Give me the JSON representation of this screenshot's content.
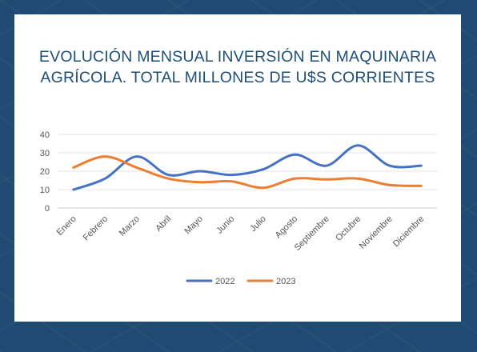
{
  "chart_data": {
    "type": "line",
    "title_line1": "EVOLUCIÓN MENSUAL INVERSIÓN EN MAQUINARIA",
    "title_line2": "AGRÍCOLA. TOTAL MILLONES DE U$S CORRIENTES",
    "categories": [
      "Enero",
      "Febrero",
      "Marzo",
      "Abril",
      "Mayo",
      "Junio",
      "Julio",
      "Agosto",
      "Septiembre",
      "Octubre",
      "Noviembre",
      "Diciembre"
    ],
    "series": [
      {
        "name": "2022",
        "color": "#4472c4",
        "values": [
          10,
          16,
          28,
          18,
          20,
          18,
          21,
          29,
          23,
          34,
          23,
          23
        ]
      },
      {
        "name": "2023",
        "color": "#ed7d31",
        "values": [
          22,
          28,
          22,
          16,
          14,
          14.5,
          11,
          16,
          15.5,
          16,
          12.5,
          12
        ]
      }
    ],
    "ylim": [
      0,
      40
    ],
    "yticks": [
      0,
      10,
      20,
      30,
      40
    ],
    "grid": true,
    "legend": "bottom"
  }
}
